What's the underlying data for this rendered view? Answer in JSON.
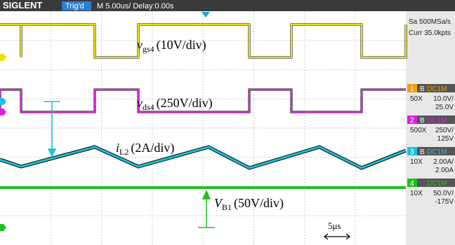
{
  "header": {
    "brand": "SIGLENT",
    "trigger": "Trig'd",
    "timebase": "M 5.00us/ Delay:0.00s"
  },
  "side_panel": {
    "sample_rate": "Sa 500MSa/s",
    "memory": "Curr 35.0kpts",
    "channels": [
      {
        "id": "1",
        "mode": "B",
        "coupling": "DC1M",
        "probe": "50X",
        "scale": "10.0V/",
        "offset": "25.0V",
        "color": "#f0a000"
      },
      {
        "id": "2",
        "mode": "B",
        "coupling": "DC1M",
        "probe": "500X",
        "scale": "250V/",
        "offset": "125V",
        "color": "#e020e0"
      },
      {
        "id": "3",
        "mode": "B",
        "coupling": "DC1M",
        "probe": "10X",
        "scale": "2.00A/",
        "offset": "2.00A",
        "color": "#20c0d8"
      },
      {
        "id": "4",
        "mode": "",
        "coupling": "DC1M",
        "probe": "10X",
        "scale": "50.0V/",
        "offset": "-175V",
        "color": "#20c020"
      }
    ]
  },
  "annotations": [
    {
      "symbol": "v",
      "subscript": "gs4",
      "scale": "(10V/div)"
    },
    {
      "symbol": "v",
      "subscript": "ds4",
      "scale": "(250V/div)"
    },
    {
      "symbol": "i",
      "subscript": "L2",
      "scale": "(2A/div)"
    },
    {
      "symbol": "V",
      "subscript": "B1",
      "scale": "(50V/div)"
    }
  ],
  "time_marker": "5μs"
}
